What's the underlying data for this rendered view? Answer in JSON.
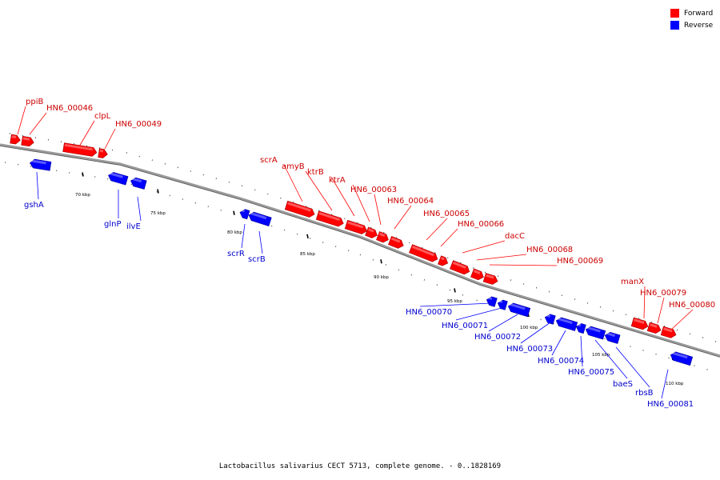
{
  "caption": "Lactobacillus salivarius CECT 5713, complete genome. - 0..1828169",
  "legend": [
    {
      "label": "Forward",
      "color": "#ff0000"
    },
    {
      "label": "Reverse",
      "color": "#0000ff"
    }
  ],
  "colors": {
    "forward": "#ff0000",
    "reverse": "#0000ff",
    "backbone": "#808080"
  },
  "tick_labels": [
    "70 kbp",
    "75 kbp",
    "80 kbp",
    "85 kbp",
    "90 kbp",
    "95 kbp",
    "100 kbp",
    "105 kbp",
    "110 kbp"
  ],
  "genes": [
    {
      "name": "ppiB",
      "strand": "forward"
    },
    {
      "name": "HN6_00046",
      "strand": "forward"
    },
    {
      "name": "clpL",
      "strand": "forward"
    },
    {
      "name": "HN6_00049",
      "strand": "forward"
    },
    {
      "name": "scrA",
      "strand": "forward"
    },
    {
      "name": "amyB",
      "strand": "forward"
    },
    {
      "name": "ktrB",
      "strand": "forward"
    },
    {
      "name": "ktrA",
      "strand": "forward"
    },
    {
      "name": "HN6_00063",
      "strand": "forward"
    },
    {
      "name": "HN6_00064",
      "strand": "forward"
    },
    {
      "name": "HN6_00065",
      "strand": "forward"
    },
    {
      "name": "HN6_00066",
      "strand": "forward"
    },
    {
      "name": "dacC",
      "strand": "forward"
    },
    {
      "name": "HN6_00068",
      "strand": "forward"
    },
    {
      "name": "HN6_00069",
      "strand": "forward"
    },
    {
      "name": "manX",
      "strand": "forward"
    },
    {
      "name": "HN6_00079",
      "strand": "forward"
    },
    {
      "name": "HN6_00080",
      "strand": "forward"
    },
    {
      "name": "gshA",
      "strand": "reverse"
    },
    {
      "name": "glnP",
      "strand": "reverse"
    },
    {
      "name": "ilvE",
      "strand": "reverse"
    },
    {
      "name": "scrR",
      "strand": "reverse"
    },
    {
      "name": "scrB",
      "strand": "reverse"
    },
    {
      "name": "HN6_00070",
      "strand": "reverse"
    },
    {
      "name": "HN6_00071",
      "strand": "reverse"
    },
    {
      "name": "HN6_00072",
      "strand": "reverse"
    },
    {
      "name": "HN6_00073",
      "strand": "reverse"
    },
    {
      "name": "HN6_00074",
      "strand": "reverse"
    },
    {
      "name": "HN6_00075",
      "strand": "reverse"
    },
    {
      "name": "baeS",
      "strand": "reverse"
    },
    {
      "name": "rbsB",
      "strand": "reverse"
    },
    {
      "name": "HN6_00081",
      "strand": "reverse"
    }
  ]
}
